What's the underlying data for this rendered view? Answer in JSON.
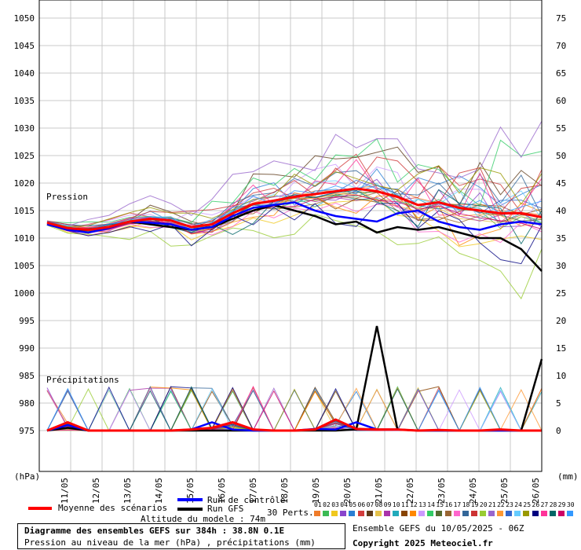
{
  "chart_data": {
    "type": "line",
    "title": "Diagramme des ensembles GEFS sur 384h : 38.8N 0.1E",
    "subtitle": "Pression au niveau de la mer (hPa) , précipitations (mm)",
    "left_axis": {
      "label": "(hPa)",
      "ticks": [
        975,
        980,
        985,
        990,
        995,
        1000,
        1005,
        1010,
        1015,
        1020,
        1025,
        1030,
        1035,
        1040,
        1045,
        1050
      ],
      "ylim": [
        967,
        1056
      ]
    },
    "right_axis": {
      "label": "(mm)",
      "ticks": [
        0,
        5,
        10,
        15,
        20,
        25,
        30,
        35,
        40,
        45,
        50,
        55,
        60,
        65,
        70,
        75
      ],
      "ylim": [
        -8,
        81
      ]
    },
    "x_ticks": [
      "11/05",
      "12/05",
      "13/05",
      "14/05",
      "15/05",
      "16/05",
      "17/05",
      "18/05",
      "19/05",
      "20/05",
      "21/05",
      "22/05",
      "23/05",
      "24/05",
      "25/05",
      "26/05"
    ],
    "grid": true,
    "annotations": {
      "pression": "Pression",
      "precip": "Précipitations"
    },
    "series": [
      {
        "name": "Moyenne des scénarios",
        "color": "#ff0000",
        "pressure": [
          1012.8,
          1011.8,
          1011.5,
          1012.0,
          1013.0,
          1013.5,
          1013.2,
          1012.0,
          1012.5,
          1014.5,
          1016.2,
          1016.8,
          1017.5,
          1018.0,
          1018.5,
          1019.0,
          1018.5,
          1017.5,
          1016.0,
          1016.5,
          1015.5,
          1015.0,
          1014.5,
          1014.5,
          1013.8
        ],
        "precip": [
          0,
          1.5,
          0,
          0,
          0,
          0,
          0,
          0.2,
          0.5,
          1.5,
          0.2,
          0,
          0,
          0.2,
          2.0,
          0.3,
          0.2,
          0.2,
          0,
          0.1,
          0,
          0,
          0.2,
          0,
          0
        ]
      },
      {
        "name": "Run de contrôle",
        "color": "#0000ff",
        "pressure": [
          1012.5,
          1011.5,
          1011.0,
          1011.8,
          1013.0,
          1012.8,
          1012.5,
          1011.5,
          1012.0,
          1014.0,
          1015.5,
          1016.0,
          1016.5,
          1015.0,
          1014.0,
          1013.5,
          1013.0,
          1014.5,
          1015.0,
          1013.0,
          1012.0,
          1011.5,
          1012.5,
          1013.0,
          1012.5
        ],
        "precip": [
          0,
          1.0,
          0,
          0,
          0,
          0,
          0,
          0.2,
          1.5,
          0.2,
          0,
          0,
          0,
          0.3,
          0.2,
          1.5,
          0.2,
          0.2,
          0,
          0,
          0,
          0,
          0,
          0,
          0
        ]
      },
      {
        "name": "Run GFS",
        "color": "#000000",
        "pressure": [
          1012.5,
          1011.5,
          1011.5,
          1012.0,
          1013.0,
          1012.5,
          1012.0,
          1011.5,
          1012.0,
          1013.5,
          1015.0,
          1016.0,
          1015.0,
          1014.0,
          1012.5,
          1013.0,
          1011.0,
          1012.0,
          1011.5,
          1012.0,
          1011.0,
          1010.0,
          1010.0,
          1008.0,
          1004.0
        ],
        "precip": [
          0,
          0.5,
          0,
          0,
          0,
          0,
          0,
          0,
          0,
          0,
          0,
          0,
          0,
          0,
          0,
          0.2,
          19.0,
          0.2,
          0,
          0,
          0,
          0,
          0,
          0,
          13.0
        ]
      }
    ],
    "perturbations_label": "30 Perts.",
    "perturbation_colors": [
      "#f07c2a",
      "#3cba54",
      "#f0c81e",
      "#8844cc",
      "#2a7fd4",
      "#d23c3c",
      "#5e3b1a",
      "#e6c24a",
      "#aa33aa",
      "#22aabb",
      "#884400",
      "#ff8800",
      "#cc99ff",
      "#33cc66",
      "#556b2f",
      "#996633",
      "#ff66cc",
      "#336699",
      "#cc3333",
      "#99cc33",
      "#9966cc",
      "#ff9933",
      "#3366cc",
      "#66ccff",
      "#999900",
      "#000080",
      "#ff3399",
      "#006666",
      "#cc0066",
      "#3399ff"
    ]
  },
  "legend": {
    "mean": "Moyenne des scénarios",
    "control": "Run de contrôle",
    "gfs": "Run GFS",
    "perts": "30 Perts.",
    "pert_numbers": [
      "01",
      "02",
      "03",
      "04",
      "05",
      "06",
      "07",
      "08",
      "09",
      "10",
      "11",
      "12",
      "13",
      "14",
      "15",
      "16",
      "17",
      "18",
      "19",
      "20",
      "21",
      "22",
      "23",
      "24",
      "25",
      "26",
      "27",
      "28",
      "29",
      "30"
    ]
  },
  "footer": {
    "title": "Diagramme des ensembles GEFS sur 384h : 38.8N 0.1E",
    "subtitle": "Pression au niveau de la mer (hPa) , précipitations (mm)",
    "altitude": "Altitude du modele : 74m",
    "ensemble": "Ensemble GEFS du 10/05/2025 - 06Z",
    "copyright": "Copyright 2025 Meteociel.fr"
  }
}
